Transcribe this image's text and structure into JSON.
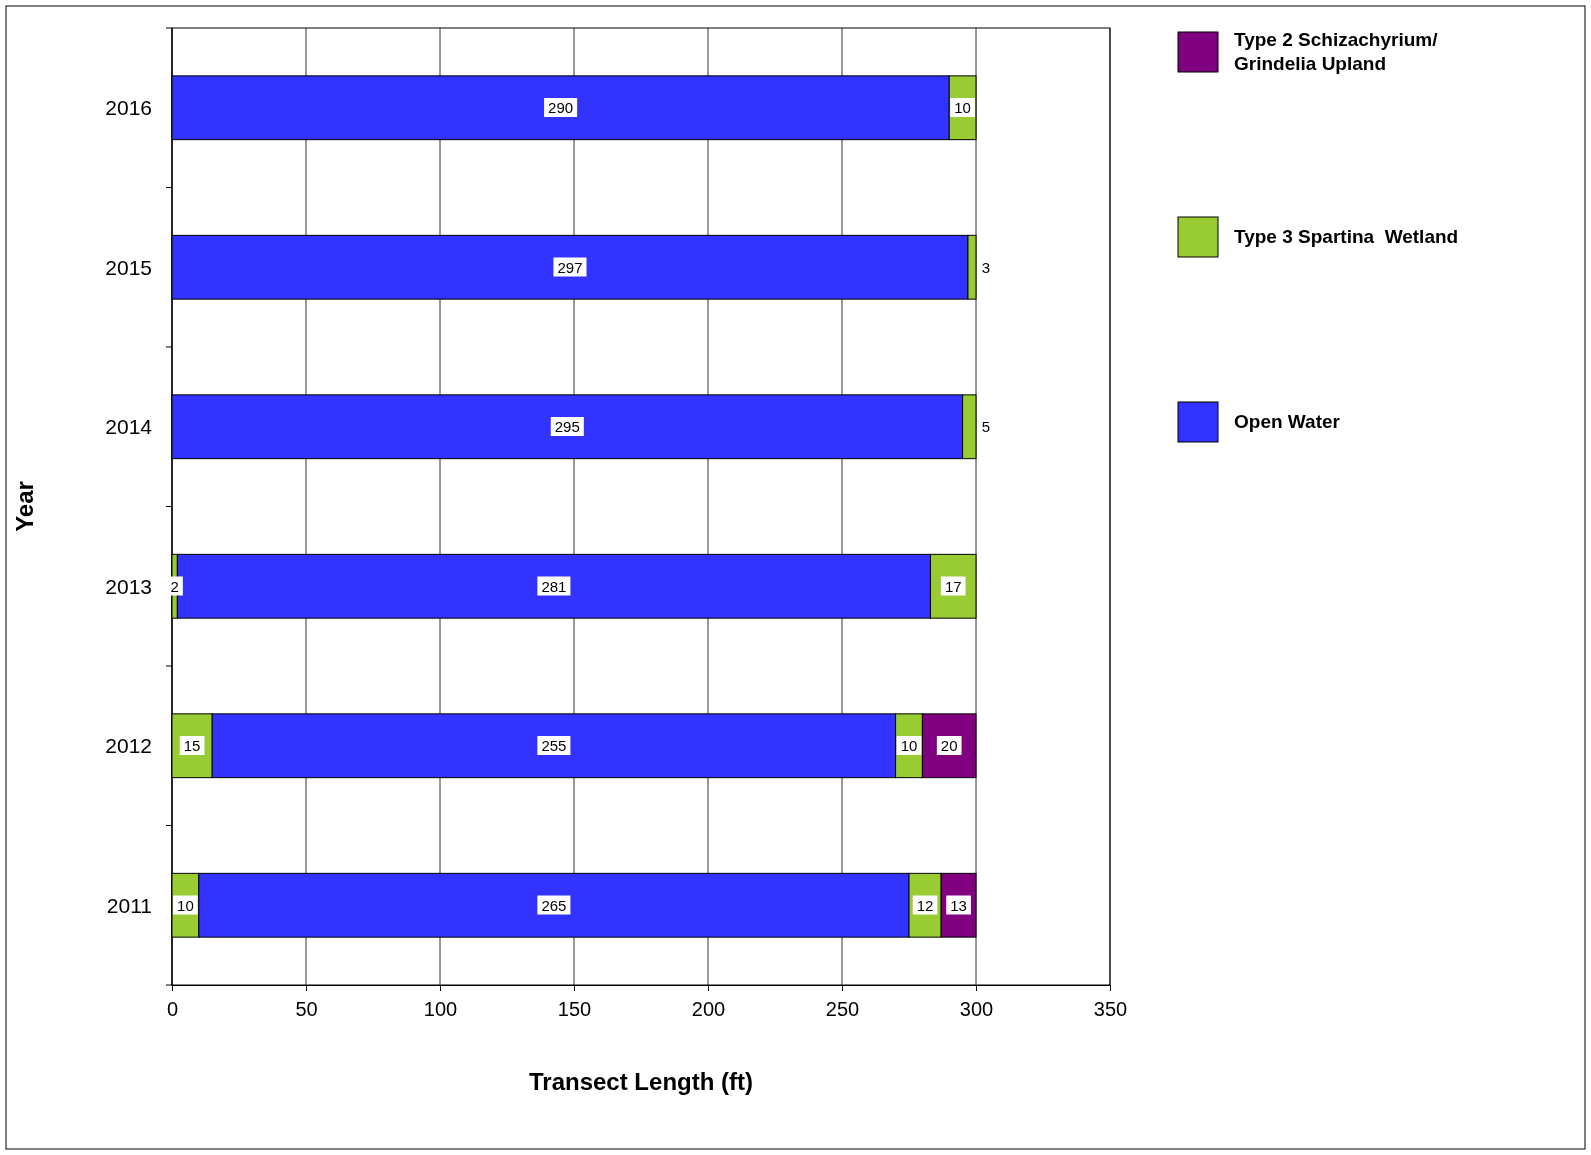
{
  "chart_data": {
    "type": "bar",
    "orientation": "horizontal",
    "stacked": true,
    "xlabel": "Transect Length (ft)",
    "ylabel": "Year",
    "categories": [
      "2016",
      "2015",
      "2014",
      "2013",
      "2012",
      "2011"
    ],
    "series": [
      {
        "color": "#99cc33",
        "values": [
          null,
          null,
          null,
          2,
          15,
          10
        ]
      },
      {
        "name": "Open Water",
        "color": "#3333ff",
        "values": [
          290,
          297,
          295,
          281,
          255,
          265
        ]
      },
      {
        "name": "Type 3 Spartina  Wetland",
        "color": "#99cc33",
        "values": [
          10,
          3,
          5,
          17,
          10,
          12
        ]
      },
      {
        "name": "Type 2 Schizachyrium/ Grindelia Upland",
        "color": "#800080",
        "values": [
          null,
          null,
          null,
          null,
          20,
          13
        ]
      }
    ],
    "xlim": [
      0,
      350
    ],
    "xticks": [
      0,
      50,
      100,
      150,
      200,
      250,
      300,
      350
    ],
    "grid": "x",
    "data_labels": true,
    "legend": "right"
  }
}
